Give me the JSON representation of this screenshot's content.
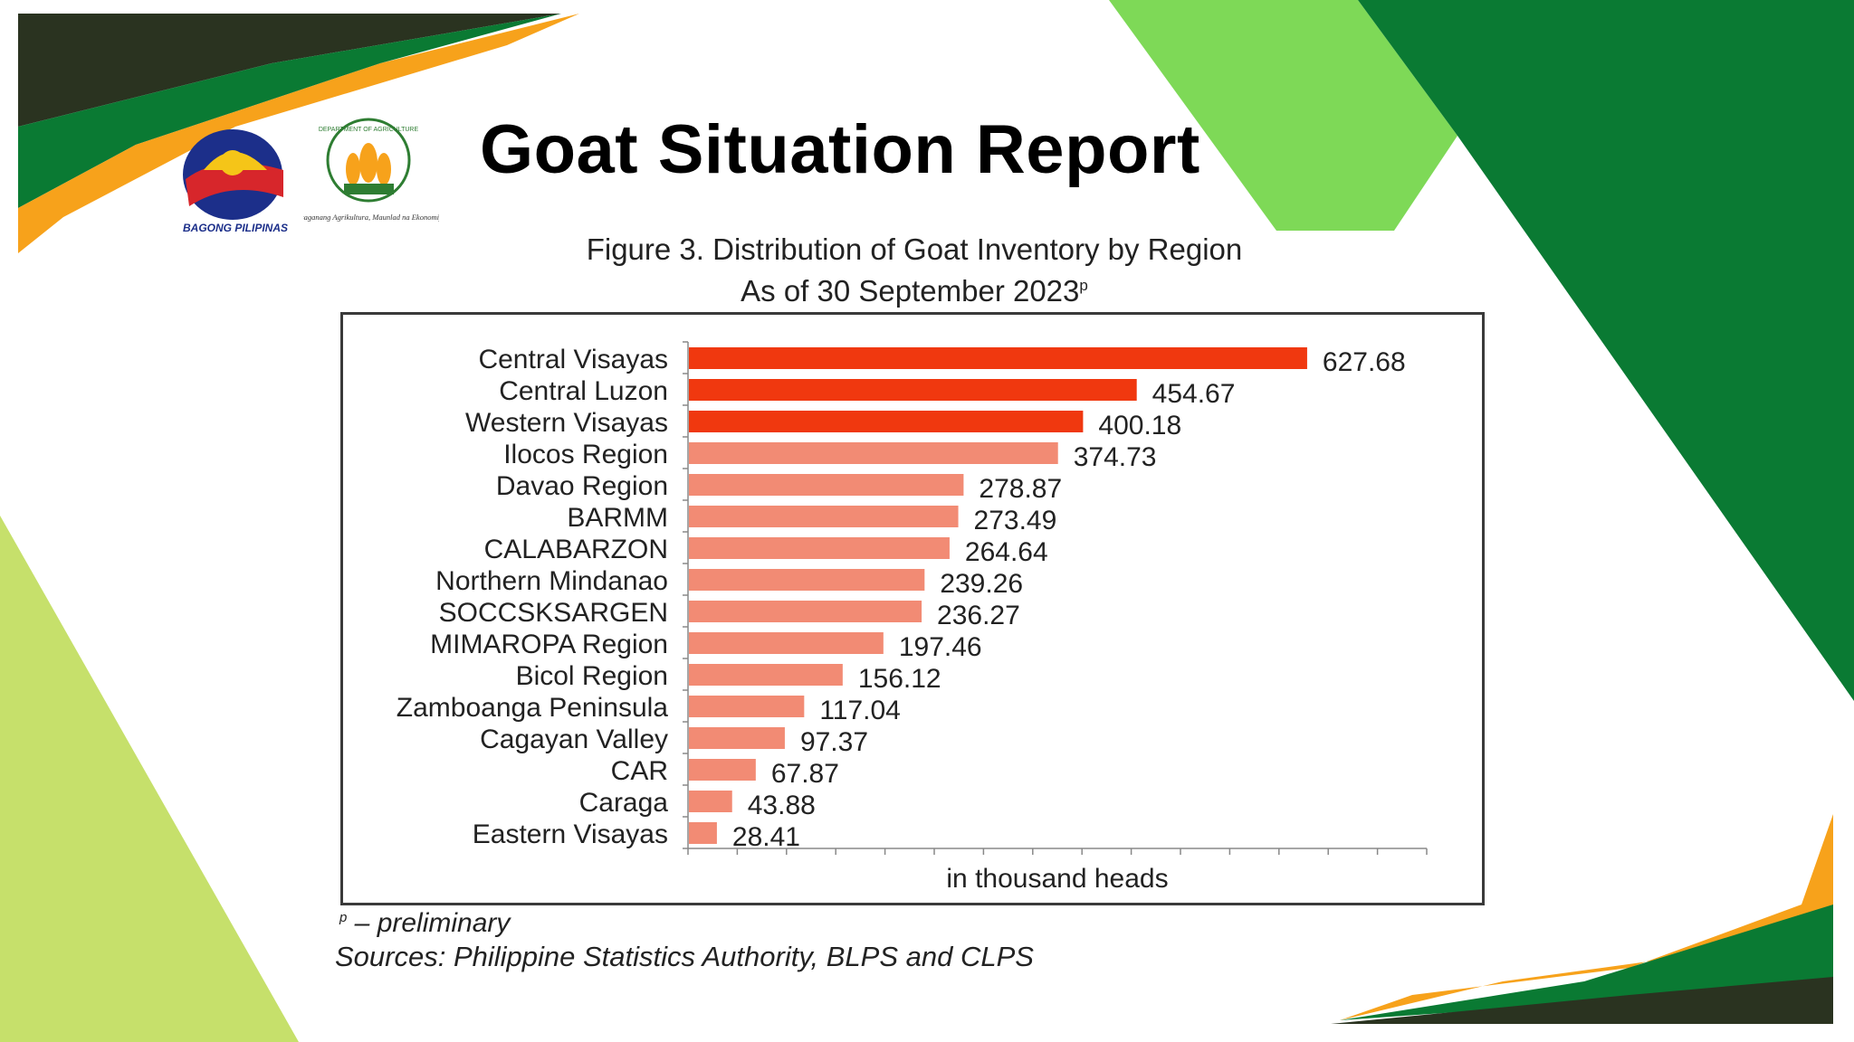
{
  "header": {
    "title": "Goat Situation Report",
    "logo_left_text": "BAGONG PILIPINAS",
    "logo_right_text": "DEPARTMENT OF AGRICULTURE",
    "logo_right_tagline": "Masaganang Agrikultura, Maunlad na Ekonomiya"
  },
  "figure": {
    "caption_line1": "Figure 3. Distribution of Goat Inventory by Region",
    "caption_line2": "As of 30 September 2023",
    "caption_sup": "p"
  },
  "footnote": {
    "marker": "p",
    "text": " – preliminary",
    "sources": "Sources: Philippine Statistics Authority, BLPS and CLPS"
  },
  "colors": {
    "highlight_bar": "#f0380f",
    "bar": "#f28b74",
    "dark_green": "#0a7a33",
    "light_green": "#7ed957",
    "orange": "#f7a21b",
    "dark_olive": "#2a3320",
    "lime": "#c6e06b"
  },
  "chart_data": {
    "type": "bar",
    "orientation": "horizontal",
    "categories": [
      "Central Visayas",
      "Central Luzon",
      "Western Visayas",
      "Ilocos Region",
      "Davao Region",
      "BARMM",
      "CALABARZON",
      "Northern Mindanao",
      "SOCCSKSARGEN",
      "MIMAROPA Region",
      "Bicol Region",
      "Zamboanga Peninsula",
      "Cagayan Valley",
      "CAR",
      "Caraga",
      "Eastern Visayas"
    ],
    "values": [
      627.68,
      454.67,
      400.18,
      374.73,
      278.87,
      273.49,
      264.64,
      239.26,
      236.27,
      197.46,
      156.12,
      117.04,
      97.37,
      67.87,
      43.88,
      28.41
    ],
    "value_labels": [
      "627.68",
      "454.67",
      "400.18",
      "374.73",
      "278.87",
      "273.49",
      "264.64",
      "239.26",
      "236.27",
      "197.46",
      "156.12",
      "117.04",
      "97.37",
      "67.87",
      "43.88",
      "28.41"
    ],
    "highlight_top": 3,
    "xlabel": "in thousand heads",
    "ylabel": "",
    "xlim": [
      0,
      750
    ],
    "x_tick_step": 50,
    "grid": false,
    "legend": "none"
  }
}
